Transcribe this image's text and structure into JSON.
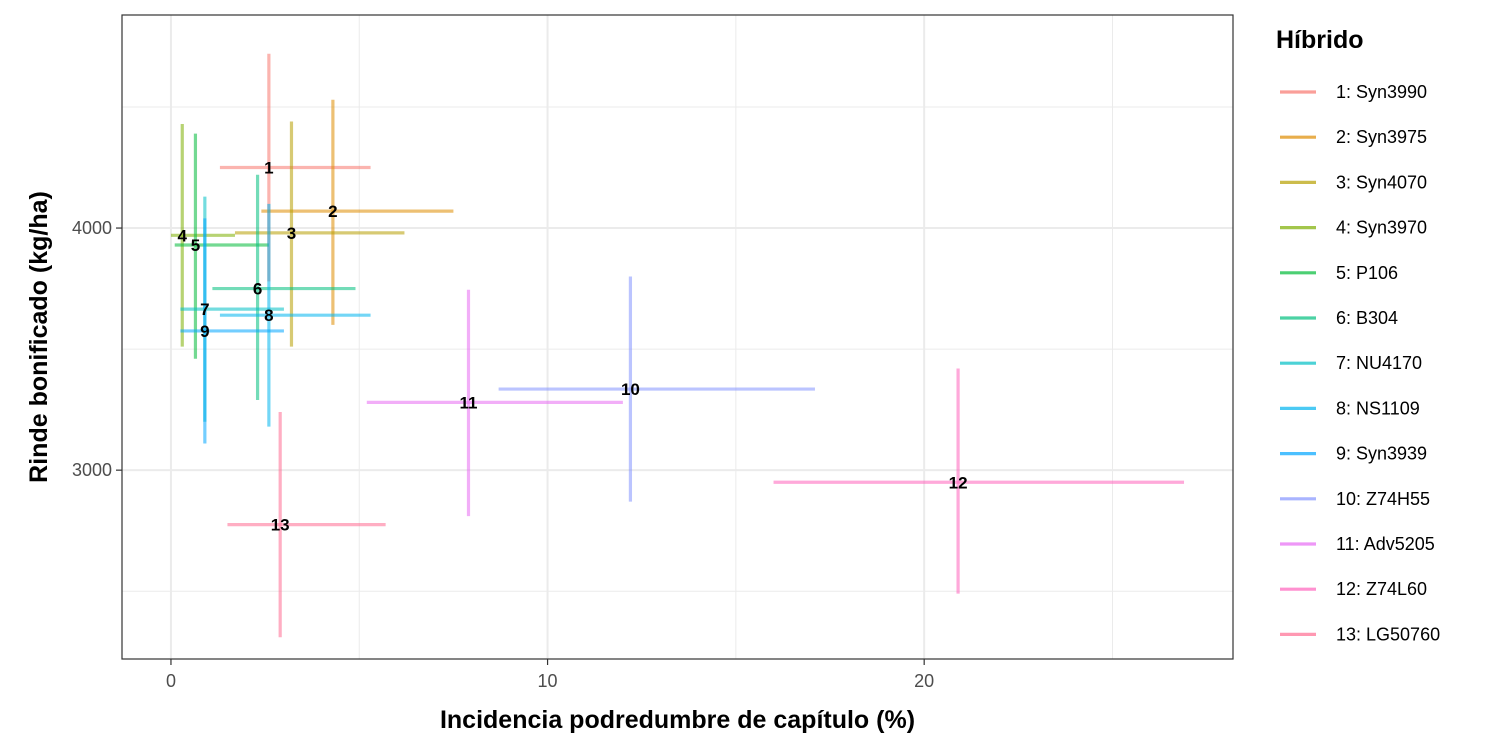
{
  "chart_data": {
    "type": "scatter",
    "title": "",
    "xlabel": "Incidencia podredumbre de capítulo (%)",
    "ylabel": "Rinde bonificado (kg/ha)",
    "xlim": [
      -1.3,
      28.2
    ],
    "ylim": [
      2220,
      4880
    ],
    "x_ticks": [
      0,
      10,
      20
    ],
    "y_ticks": [
      3000,
      4000
    ],
    "grid": true,
    "legend_title": "Híbrido",
    "legend_position": "right",
    "series": [
      {
        "id": "1",
        "name": "1: Syn3990",
        "color": "#F8766D",
        "x": 2.6,
        "y": 4250,
        "xmin": 1.3,
        "xmax": 5.3,
        "ymin": 3780,
        "ymax": 4720
      },
      {
        "id": "2",
        "name": "2: Syn3975",
        "color": "#DE8C00",
        "x": 4.3,
        "y": 4070,
        "xmin": 2.4,
        "xmax": 7.5,
        "ymin": 3600,
        "ymax": 4530
      },
      {
        "id": "3",
        "name": "3: Syn4070",
        "color": "#B79F00",
        "x": 3.2,
        "y": 3980,
        "xmin": 1.7,
        "xmax": 6.2,
        "ymin": 3510,
        "ymax": 4440
      },
      {
        "id": "4",
        "name": "4: Syn3970",
        "color": "#7CAE00",
        "x": 0.3,
        "y": 3970,
        "xmin": 0.0,
        "xmax": 1.7,
        "ymin": 3510,
        "ymax": 4430
      },
      {
        "id": "5",
        "name": "5: P106",
        "color": "#00BA38",
        "x": 0.65,
        "y": 3930,
        "xmin": 0.1,
        "xmax": 2.6,
        "ymin": 3460,
        "ymax": 4390
      },
      {
        "id": "6",
        "name": "6: B304",
        "color": "#00BF7D",
        "x": 2.3,
        "y": 3750,
        "xmin": 1.1,
        "xmax": 4.9,
        "ymin": 3290,
        "ymax": 4220
      },
      {
        "id": "7",
        "name": "7: NU4170",
        "color": "#00BFC4",
        "x": 0.9,
        "y": 3665,
        "xmin": 0.25,
        "xmax": 3.0,
        "ymin": 3200,
        "ymax": 4130
      },
      {
        "id": "8",
        "name": "8: NS1109",
        "color": "#00B4EF",
        "x": 2.6,
        "y": 3640,
        "xmin": 1.3,
        "xmax": 5.3,
        "ymin": 3180,
        "ymax": 4100
      },
      {
        "id": "9",
        "name": "9: Syn3939",
        "color": "#00A5FF",
        "x": 0.9,
        "y": 3575,
        "xmin": 0.25,
        "xmax": 3.0,
        "ymin": 3110,
        "ymax": 4040
      },
      {
        "id": "10",
        "name": "10: Z74H55",
        "color": "#8494FF",
        "x": 12.2,
        "y": 3335,
        "xmin": 8.7,
        "xmax": 17.1,
        "ymin": 2870,
        "ymax": 3800
      },
      {
        "id": "11",
        "name": "11: Adv5205",
        "color": "#E76BF3",
        "x": 7.9,
        "y": 3280,
        "xmin": 5.2,
        "xmax": 12.0,
        "ymin": 2810,
        "ymax": 3745
      },
      {
        "id": "12",
        "name": "12: Z74L60",
        "color": "#FF62BC",
        "x": 20.9,
        "y": 2950,
        "xmin": 16.0,
        "xmax": 26.9,
        "ymin": 2490,
        "ymax": 3420
      },
      {
        "id": "13",
        "name": "13: LG50760",
        "color": "#FF6C91",
        "x": 2.9,
        "y": 2775,
        "xmin": 1.5,
        "xmax": 5.7,
        "ymin": 2310,
        "ymax": 3240
      }
    ]
  }
}
